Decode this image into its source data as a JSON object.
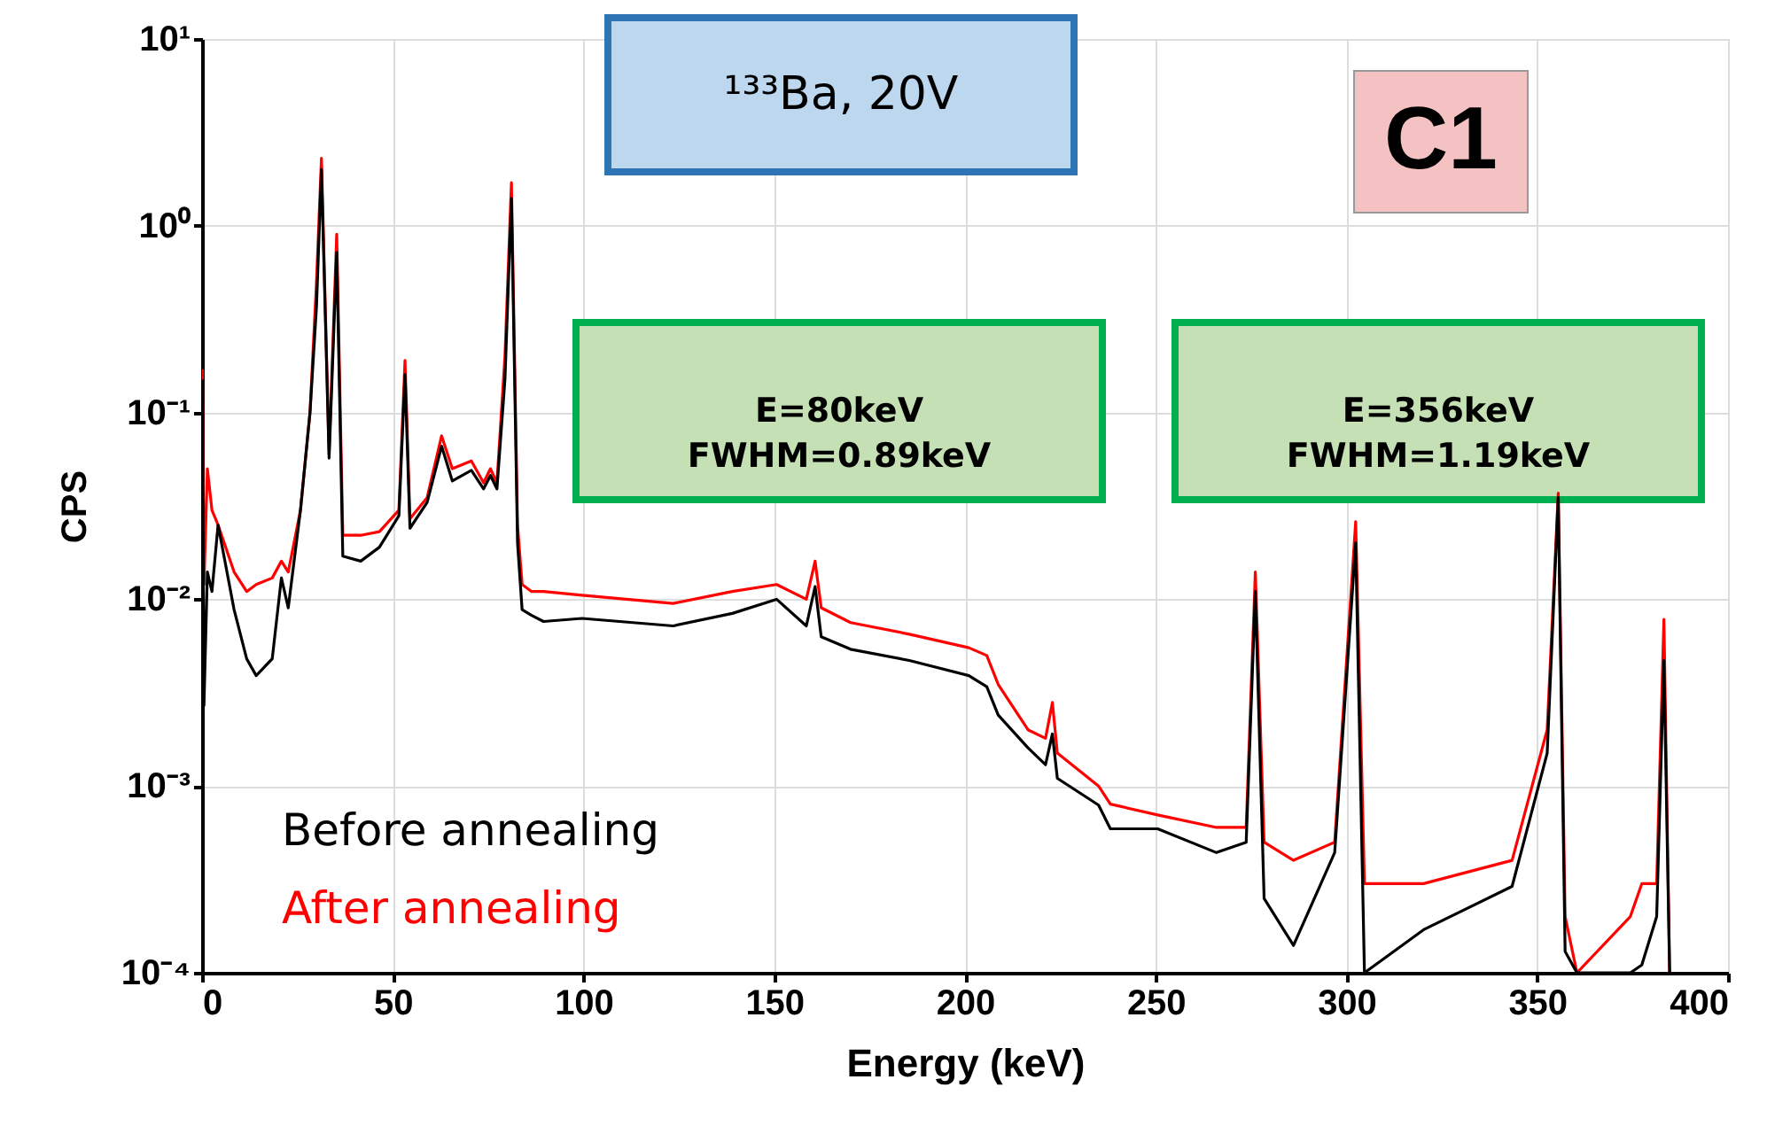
{
  "chart_data": {
    "type": "line",
    "xlabel": "Energy (keV)",
    "ylabel": "CPS",
    "log": "y",
    "grid": true,
    "legend": "bottom left",
    "line_style": "solid",
    "marker": "none",
    "xlim": [
      0,
      400
    ],
    "xticks": [
      0,
      50,
      100,
      150,
      200,
      250,
      300,
      350,
      400
    ],
    "ylim": [
      0.0001,
      10
    ],
    "yticks": [
      {
        "value": 0.0001,
        "label": "10⁻⁴"
      },
      {
        "value": 0.001,
        "label": "10⁻³"
      },
      {
        "value": 0.01,
        "label": "10⁻²"
      },
      {
        "value": 0.1,
        "label": "10⁻¹"
      },
      {
        "value": 1,
        "label": "10⁰"
      },
      {
        "value": 10,
        "label": "10¹"
      }
    ],
    "annotations": [
      "¹³³Ba, 20V",
      "C1",
      "E=80keV\nFWHM=0.89keV",
      "E=356keV\nFWHM=1.19keV"
    ],
    "x": [
      0.1,
      0.5,
      1.4,
      2.6,
      4.2,
      8.4,
      11.7,
      14.2,
      18.4,
      20.8,
      22.6,
      25.8,
      28.3,
      30.0,
      31.3,
      33.3,
      35.3,
      36.9,
      41.6,
      46.5,
      51.6,
      53.2,
      54.5,
      59.0,
      62.8,
      65.6,
      70.6,
      73.8,
      75.6,
      77.3,
      79.4,
      81.1,
      82.7,
      83.9,
      86.4,
      89.5,
      99.6,
      123.5,
      139.0,
      150.6,
      158.4,
      160.7,
      162.3,
      170.0,
      185.4,
      201.0,
      205.7,
      208.7,
      216.5,
      221.1,
      222.9,
      224.2,
      235.0,
      238.1,
      250.5,
      265.9,
      273.7,
      276.1,
      278.4,
      286.1,
      296.9,
      302.4,
      304.7,
      320.2,
      343.4,
      352.6,
      355.5,
      357.3,
      360.4,
      374.4,
      377.4,
      381.3,
      383.2,
      384.7
    ],
    "series": [
      {
        "name": "After annealing",
        "color": "#ff0000",
        "values": [
          0.17,
          0.012,
          0.05,
          0.03,
          0.025,
          0.014,
          0.011,
          0.012,
          0.013,
          0.016,
          0.014,
          0.03,
          0.1,
          0.5,
          2.3,
          0.06,
          0.9,
          0.022,
          0.022,
          0.023,
          0.03,
          0.19,
          0.027,
          0.035,
          0.075,
          0.05,
          0.055,
          0.042,
          0.05,
          0.042,
          0.2,
          1.7,
          0.025,
          0.012,
          0.011,
          0.011,
          0.0105,
          0.0095,
          0.011,
          0.012,
          0.01,
          0.016,
          0.009,
          0.0075,
          0.0065,
          0.0055,
          0.005,
          0.0035,
          0.002,
          0.0018,
          0.0028,
          0.0015,
          0.001,
          0.0008,
          0.0007,
          0.0006,
          0.0006,
          0.014,
          0.0005,
          0.0004,
          0.0005,
          0.026,
          0.0003,
          0.0003,
          0.0004,
          0.002,
          0.037,
          0.0002,
          0.0001,
          0.0002,
          0.0003,
          0.0003,
          0.0078,
          0.0001
        ]
      },
      {
        "name": "Before annealing",
        "color": "#000000",
        "values": [
          0.15,
          0.0027,
          0.014,
          0.011,
          0.025,
          0.0088,
          0.0048,
          0.0039,
          0.0048,
          0.013,
          0.009,
          0.03,
          0.1,
          0.37,
          2.0,
          0.057,
          0.72,
          0.017,
          0.016,
          0.019,
          0.028,
          0.16,
          0.024,
          0.033,
          0.066,
          0.043,
          0.049,
          0.039,
          0.046,
          0.039,
          0.15,
          1.4,
          0.02,
          0.0088,
          0.0082,
          0.0076,
          0.0079,
          0.0072,
          0.0084,
          0.01,
          0.0072,
          0.0117,
          0.0063,
          0.0054,
          0.0047,
          0.0039,
          0.0034,
          0.0024,
          0.0016,
          0.0013,
          0.0019,
          0.0011,
          0.00079,
          0.00059,
          0.00059,
          0.00044,
          0.0005,
          0.011,
          0.00025,
          0.00014,
          0.00044,
          0.02,
          0.0001,
          0.00017,
          0.00029,
          0.0015,
          0.035,
          0.00013,
          0.0001,
          0.0001,
          0.00011,
          0.0002,
          0.0047,
          0.0001
        ]
      }
    ]
  }
}
